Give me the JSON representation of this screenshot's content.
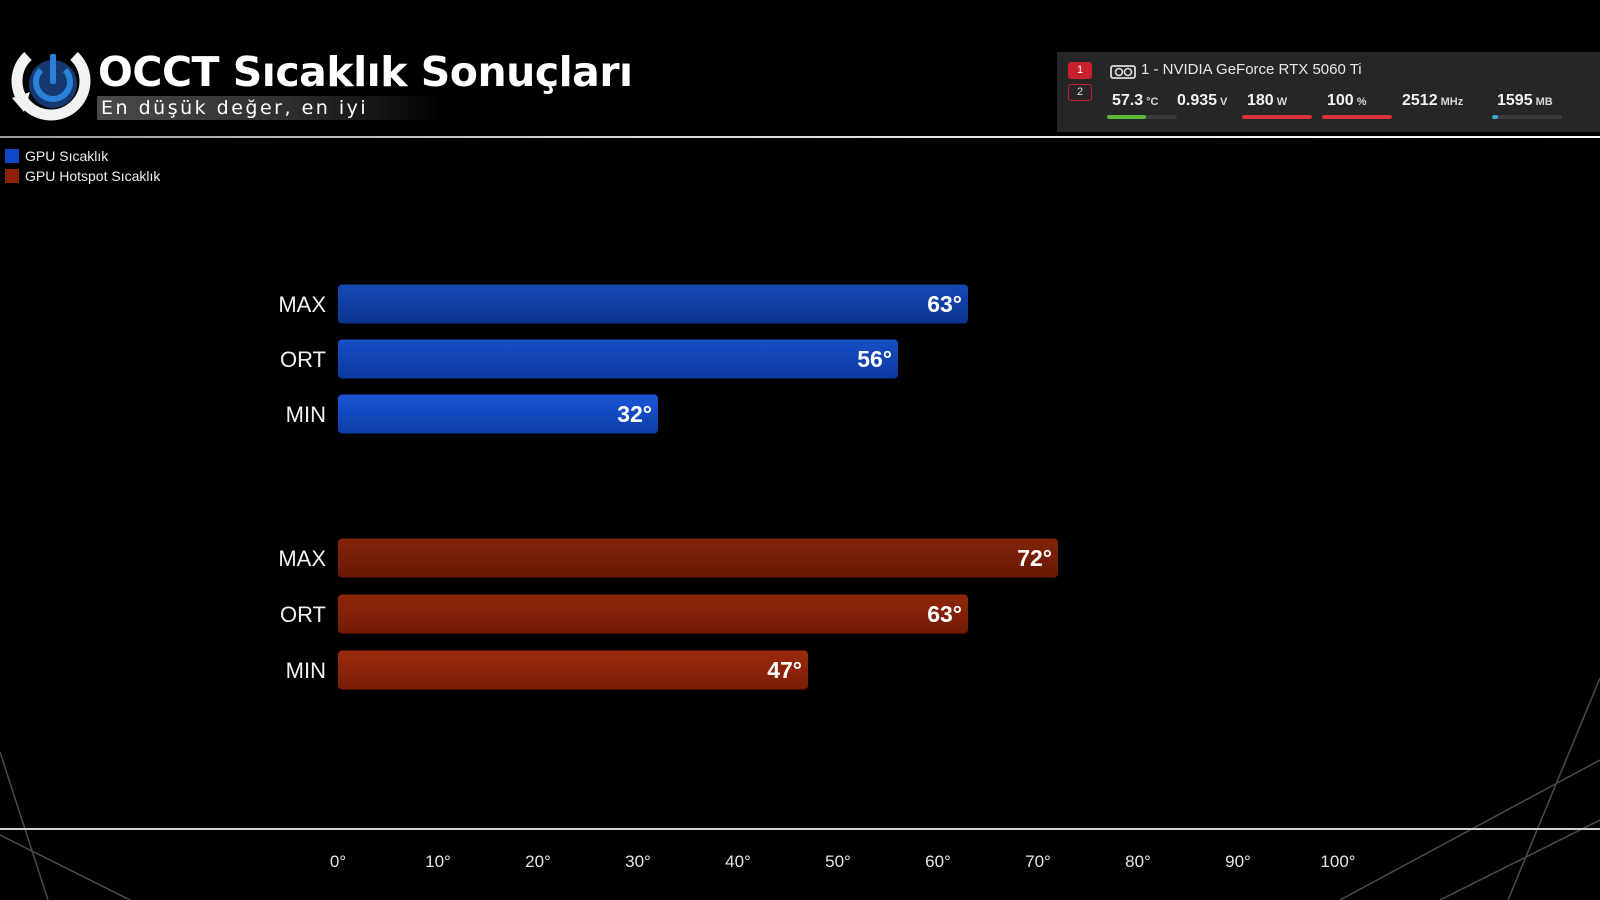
{
  "header": {
    "title": "OCCT Sıcaklık Sonuçları",
    "subtitle": "En düşük değer, en iyi"
  },
  "hw_monitor": {
    "tabs": [
      "1",
      "2"
    ],
    "gpu_name": "1 - NVIDIA GeForce RTX 5060 Ti",
    "metrics": [
      {
        "value": "57.3",
        "unit": "°C",
        "bar_color": "#5fb83a",
        "bar_fraction": 0.55
      },
      {
        "value": "0.935",
        "unit": "V",
        "bar_color": null,
        "bar_fraction": null
      },
      {
        "value": "180",
        "unit": "W",
        "bar_color": "#d8323c",
        "bar_fraction": 1.0
      },
      {
        "value": "100",
        "unit": "%",
        "bar_color": "#d8323c",
        "bar_fraction": 1.0
      },
      {
        "value": "2512",
        "unit": "MHz",
        "bar_color": null,
        "bar_fraction": null
      },
      {
        "value": "1595",
        "unit": "MB",
        "bar_color": "#3aa8d8",
        "bar_fraction": 0.08
      }
    ]
  },
  "chart_data": {
    "type": "bar",
    "orientation": "horizontal",
    "title": "OCCT Sıcaklık Sonuçları",
    "xlim": [
      0,
      100
    ],
    "x_ticks": [
      "0°",
      "10°",
      "20°",
      "30°",
      "40°",
      "50°",
      "60°",
      "70°",
      "80°",
      "90°",
      "100°"
    ],
    "legend_position": "top-left",
    "series": [
      {
        "name": "GPU Sıcaklık",
        "color": "#0f47c6",
        "categories": [
          "MAX",
          "ORT",
          "MIN"
        ],
        "values": [
          63,
          56,
          32
        ],
        "labels": [
          "63°",
          "56°",
          "32°"
        ]
      },
      {
        "name": "GPU Hotspot Sıcaklık",
        "color": "#8e2208",
        "categories": [
          "MAX",
          "ORT",
          "MIN"
        ],
        "values": [
          72,
          63,
          47
        ],
        "labels": [
          "72°",
          "63°",
          "47°"
        ]
      }
    ]
  }
}
